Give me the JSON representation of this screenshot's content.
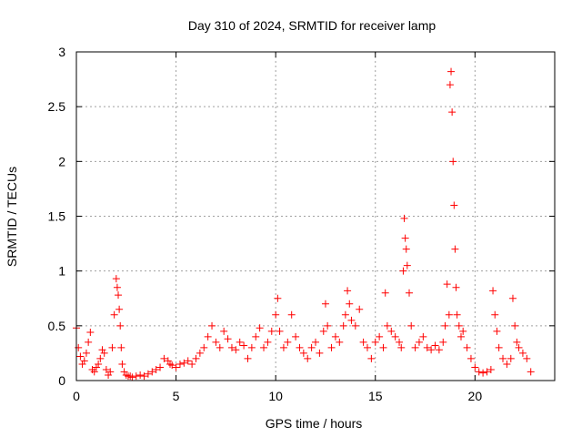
{
  "chart_data": {
    "type": "scatter",
    "title": "Day 310 of 2024, SRMTID for receiver lamp",
    "xlabel": "GPS time / hours",
    "ylabel": "SRMTID / TECUs",
    "xlim": [
      0,
      24
    ],
    "ylim": [
      0,
      3
    ],
    "xticks": [
      0,
      5,
      10,
      15,
      20
    ],
    "yticks": [
      0,
      0.5,
      1,
      1.5,
      2,
      2.5,
      3
    ],
    "xtick_labels": [
      "0",
      "5",
      "10",
      "15",
      "20"
    ],
    "ytick_labels": [
      "0",
      "0.5",
      "1",
      "1.5",
      "2",
      "2.5",
      "3"
    ],
    "grid": true,
    "marker": "+",
    "color": "#ff0000",
    "series": [
      {
        "name": "lamp",
        "x": [
          0.0,
          0.1,
          0.2,
          0.3,
          0.4,
          0.5,
          0.6,
          0.7,
          0.8,
          0.9,
          1.0,
          1.1,
          1.2,
          1.3,
          1.4,
          1.5,
          1.6,
          1.7,
          1.8,
          1.9,
          2.0,
          2.05,
          2.1,
          2.15,
          2.2,
          2.25,
          2.3,
          2.4,
          2.5,
          2.6,
          2.7,
          2.8,
          3.0,
          3.2,
          3.4,
          3.6,
          3.8,
          4.0,
          4.2,
          4.4,
          4.6,
          4.7,
          4.8,
          5.0,
          5.2,
          5.4,
          5.6,
          5.8,
          6.0,
          6.2,
          6.4,
          6.6,
          6.8,
          7.0,
          7.2,
          7.4,
          7.6,
          7.8,
          8.0,
          8.2,
          8.4,
          8.6,
          8.8,
          9.0,
          9.2,
          9.4,
          9.6,
          9.8,
          10.0,
          10.1,
          10.2,
          10.4,
          10.6,
          10.8,
          11.0,
          11.2,
          11.4,
          11.6,
          11.8,
          12.0,
          12.2,
          12.4,
          12.5,
          12.6,
          12.8,
          13.0,
          13.2,
          13.4,
          13.5,
          13.6,
          13.7,
          13.8,
          14.0,
          14.2,
          14.4,
          14.6,
          14.8,
          15.0,
          15.2,
          15.4,
          15.5,
          15.6,
          15.8,
          16.0,
          16.2,
          16.3,
          16.4,
          16.45,
          16.5,
          16.55,
          16.6,
          16.7,
          16.8,
          17.0,
          17.2,
          17.4,
          17.6,
          17.8,
          18.0,
          18.2,
          18.4,
          18.5,
          18.6,
          18.7,
          18.75,
          18.8,
          18.85,
          18.9,
          18.95,
          19.0,
          19.05,
          19.1,
          19.2,
          19.3,
          19.4,
          19.6,
          19.8,
          20.0,
          20.2,
          20.4,
          20.6,
          20.8,
          20.9,
          21.0,
          21.1,
          21.2,
          21.4,
          21.6,
          21.8,
          21.9,
          22.0,
          22.1,
          22.2,
          22.4,
          22.6,
          22.8
        ],
        "y": [
          0.48,
          0.3,
          0.22,
          0.15,
          0.18,
          0.25,
          0.35,
          0.44,
          0.1,
          0.08,
          0.12,
          0.15,
          0.2,
          0.28,
          0.25,
          0.1,
          0.05,
          0.08,
          0.3,
          0.6,
          0.93,
          0.85,
          0.78,
          0.65,
          0.5,
          0.3,
          0.15,
          0.08,
          0.05,
          0.04,
          0.04,
          0.03,
          0.04,
          0.05,
          0.04,
          0.06,
          0.08,
          0.1,
          0.12,
          0.2,
          0.18,
          0.15,
          0.14,
          0.12,
          0.15,
          0.16,
          0.18,
          0.15,
          0.2,
          0.25,
          0.3,
          0.4,
          0.5,
          0.35,
          0.3,
          0.45,
          0.38,
          0.3,
          0.28,
          0.35,
          0.32,
          0.2,
          0.3,
          0.4,
          0.48,
          0.3,
          0.35,
          0.45,
          0.6,
          0.75,
          0.45,
          0.3,
          0.35,
          0.6,
          0.4,
          0.3,
          0.25,
          0.2,
          0.3,
          0.35,
          0.25,
          0.45,
          0.7,
          0.5,
          0.3,
          0.4,
          0.35,
          0.5,
          0.6,
          0.82,
          0.7,
          0.55,
          0.5,
          0.65,
          0.35,
          0.3,
          0.2,
          0.35,
          0.4,
          0.3,
          0.8,
          0.5,
          0.45,
          0.4,
          0.35,
          0.3,
          1.0,
          1.48,
          1.3,
          1.2,
          1.05,
          0.8,
          0.5,
          0.3,
          0.35,
          0.4,
          0.3,
          0.28,
          0.32,
          0.28,
          0.35,
          0.5,
          0.88,
          0.6,
          2.7,
          2.82,
          2.45,
          2.0,
          1.6,
          1.2,
          0.85,
          0.6,
          0.5,
          0.4,
          0.45,
          0.3,
          0.2,
          0.12,
          0.08,
          0.07,
          0.08,
          0.1,
          0.82,
          0.6,
          0.45,
          0.3,
          0.2,
          0.15,
          0.2,
          0.75,
          0.5,
          0.35,
          0.3,
          0.25,
          0.2,
          0.08
        ]
      }
    ]
  }
}
